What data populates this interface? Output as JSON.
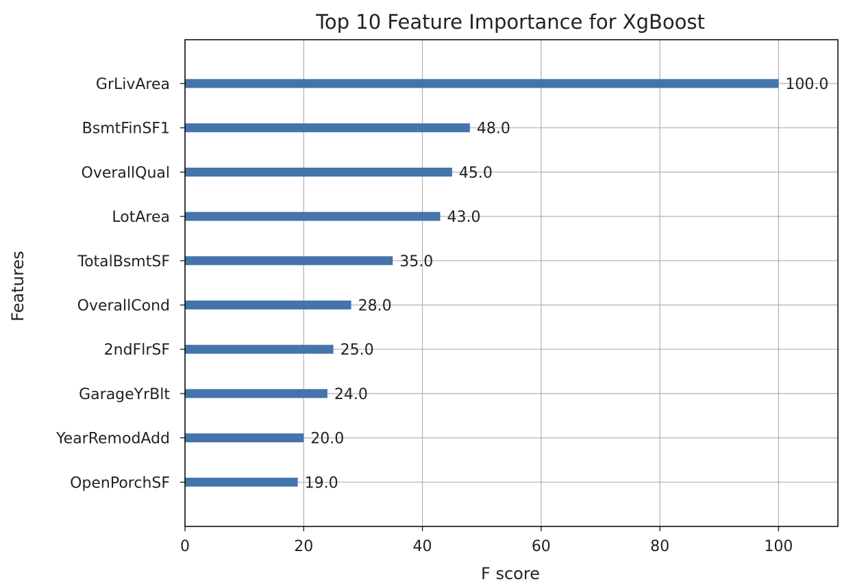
{
  "chart_data": {
    "type": "bar",
    "orientation": "horizontal",
    "title": "Top 10 Feature Importance for XgBoost",
    "xlabel": "F score",
    "ylabel": "Features",
    "categories": [
      "GrLivArea",
      "BsmtFinSF1",
      "OverallQual",
      "LotArea",
      "TotalBsmtSF",
      "OverallCond",
      "2ndFlrSF",
      "GarageYrBlt",
      "YearRemodAdd",
      "OpenPorchSF"
    ],
    "values": [
      100.0,
      48.0,
      45.0,
      43.0,
      35.0,
      28.0,
      25.0,
      24.0,
      20.0,
      19.0
    ],
    "value_labels": [
      "100.0",
      "48.0",
      "45.0",
      "43.0",
      "35.0",
      "28.0",
      "25.0",
      "24.0",
      "20.0",
      "19.0"
    ],
    "xlim": [
      0,
      110
    ],
    "xticks": [
      0,
      20,
      40,
      60,
      80,
      100
    ],
    "grid": true,
    "legend": "none",
    "colors": {
      "bar": "#4474aa",
      "grid": "#b0b0b0",
      "axis": "#000000",
      "text": "#222222"
    }
  }
}
